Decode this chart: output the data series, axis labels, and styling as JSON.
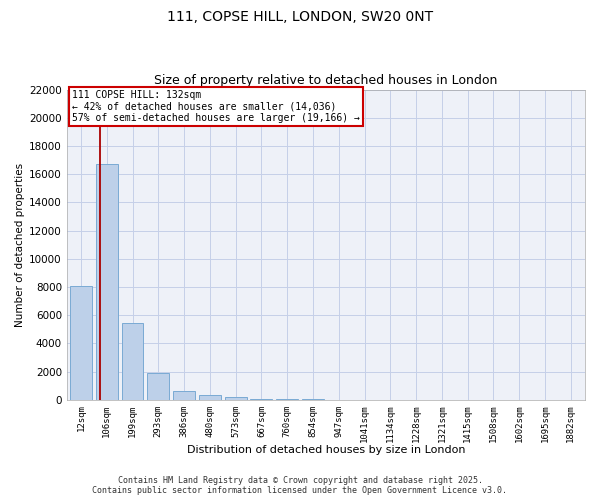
{
  "title1": "111, COPSE HILL, LONDON, SW20 0NT",
  "title2": "Size of property relative to detached houses in London",
  "xlabel": "Distribution of detached houses by size in London",
  "ylabel": "Number of detached properties",
  "categories": [
    "12sqm",
    "106sqm",
    "199sqm",
    "293sqm",
    "386sqm",
    "480sqm",
    "573sqm",
    "667sqm",
    "760sqm",
    "854sqm",
    "947sqm",
    "1041sqm",
    "1134sqm",
    "1228sqm",
    "1321sqm",
    "1415sqm",
    "1508sqm",
    "1602sqm",
    "1695sqm",
    "1882sqm"
  ],
  "values": [
    8100,
    16700,
    5450,
    1900,
    650,
    350,
    180,
    80,
    40,
    20,
    10,
    8,
    5,
    3,
    2,
    1,
    1,
    0,
    0,
    0
  ],
  "bar_color": "#bdd0e9",
  "bar_edge_color": "#7aaad4",
  "vline_x_index": 0.72,
  "vline_color": "#aa0000",
  "annotation_line1": "111 COPSE HILL: 132sqm",
  "annotation_line2": "← 42% of detached houses are smaller (14,036)",
  "annotation_line3": "57% of semi-detached houses are larger (19,166) →",
  "annotation_box_color": "#cc0000",
  "ylim": [
    0,
    22000
  ],
  "yticks": [
    0,
    2000,
    4000,
    6000,
    8000,
    10000,
    12000,
    14000,
    16000,
    18000,
    20000,
    22000
  ],
  "footer": "Contains HM Land Registry data © Crown copyright and database right 2025.\nContains public sector information licensed under the Open Government Licence v3.0.",
  "bg_color": "#eef1f8",
  "grid_color": "#c5cfe8",
  "fig_width": 6.0,
  "fig_height": 5.0
}
